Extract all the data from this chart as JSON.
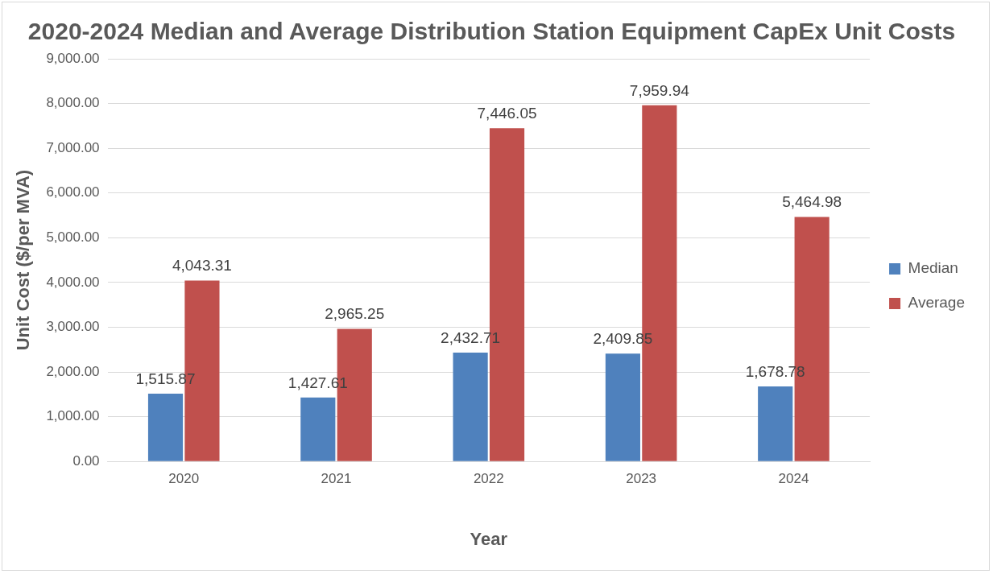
{
  "chart_data": {
    "type": "bar",
    "title": "2020-2024 Median and Average Distribution Station Equipment CapEx Unit Costs",
    "xlabel": "Year",
    "ylabel": "Unit Cost ($/per MVA)",
    "categories": [
      "2020",
      "2021",
      "2022",
      "2023",
      "2024"
    ],
    "series": [
      {
        "name": "Median",
        "color": "#4f81bd",
        "values": [
          1515.87,
          1427.61,
          2432.71,
          2409.85,
          1678.78
        ],
        "value_labels": [
          "1,515.87",
          "1,427.61",
          "2,432.71",
          "2,409.85",
          "1,678.78"
        ]
      },
      {
        "name": "Average",
        "color": "#c0504d",
        "values": [
          4043.31,
          2965.25,
          7446.05,
          7959.94,
          5464.98
        ],
        "value_labels": [
          "4,043.31",
          "2,965.25",
          "7,446.05",
          "7,959.94",
          "5,464.98"
        ]
      }
    ],
    "ylim": [
      0,
      9000
    ],
    "yticks": [
      {
        "value": 0,
        "label": "0.00"
      },
      {
        "value": 1000,
        "label": "1,000.00"
      },
      {
        "value": 2000,
        "label": "2,000.00"
      },
      {
        "value": 3000,
        "label": "3,000.00"
      },
      {
        "value": 4000,
        "label": "4,000.00"
      },
      {
        "value": 5000,
        "label": "5,000.00"
      },
      {
        "value": 6000,
        "label": "6,000.00"
      },
      {
        "value": 7000,
        "label": "7,000.00"
      },
      {
        "value": 8000,
        "label": "8,000.00"
      },
      {
        "value": 9000,
        "label": "9,000.00"
      }
    ],
    "grid": "y",
    "legend": "right"
  }
}
